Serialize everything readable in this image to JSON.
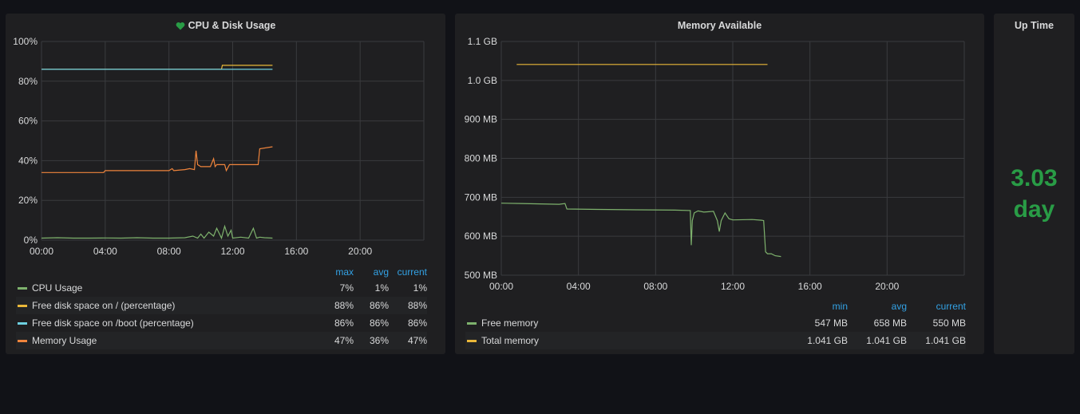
{
  "panels": [
    {
      "title": "CPU & Disk Usage",
      "icon": "heart-icon",
      "chart_data": {
        "type": "line",
        "title": "CPU & Disk Usage",
        "x_unit": "hours",
        "xlim": [
          0,
          24
        ],
        "ylim": [
          0,
          100
        ],
        "y_ticks": [
          "0%",
          "20%",
          "40%",
          "60%",
          "80%",
          "100%"
        ],
        "x_ticks": [
          "00:00",
          "04:00",
          "08:00",
          "12:00",
          "16:00",
          "20:00"
        ],
        "series": [
          {
            "name": "CPU Usage",
            "color": "#7eb26d",
            "x": [
              0,
              1,
              2,
              3,
              4,
              5,
              6,
              7,
              8,
              9,
              9.5,
              9.8,
              10,
              10.2,
              10.5,
              10.8,
              11,
              11.3,
              11.5,
              11.7,
              11.9,
              12,
              12.5,
              13,
              13.3,
              13.5,
              13.7,
              14,
              14.5
            ],
            "y": [
              1,
              1.2,
              1,
              1,
              1.1,
              1,
              1.2,
              1,
              1,
              1.2,
              2,
              1,
              3,
              1,
              4,
              2,
              6,
              1,
              7,
              2,
              5,
              1,
              1.5,
              1,
              6,
              1,
              1.5,
              1.2,
              1
            ]
          },
          {
            "name": "Free disk space on / (percentage)",
            "color": "#eab839",
            "x": [
              0,
              11.3,
              11.35,
              14.5
            ],
            "y": [
              86,
              86,
              88,
              88
            ]
          },
          {
            "name": "Free disk space on /boot (percentage)",
            "color": "#6ed0e0",
            "x": [
              0,
              14.5
            ],
            "y": [
              86,
              86
            ]
          },
          {
            "name": "Memory Usage",
            "color": "#ef843c",
            "x": [
              0,
              3.9,
              4,
              8,
              8.2,
              8.3,
              9,
              9.3,
              9.6,
              9.7,
              9.8,
              10,
              10.6,
              10.8,
              10.9,
              11,
              11.2,
              11.5,
              11.6,
              11.8,
              12,
              13.6,
              13.7,
              14.5
            ],
            "y": [
              34,
              34,
              35,
              35,
              36,
              35,
              35.5,
              36,
              35.5,
              45,
              38,
              37,
              37,
              41,
              37,
              38,
              38,
              38,
              35,
              38,
              38,
              38,
              46,
              47
            ]
          }
        ]
      },
      "legend": {
        "headers": [
          "max",
          "avg",
          "current"
        ],
        "rows": [
          {
            "name": "CPU Usage",
            "color": "#7eb26d",
            "max": "7%",
            "avg": "1%",
            "current": "1%"
          },
          {
            "name": "Free disk space on / (percentage)",
            "color": "#eab839",
            "max": "88%",
            "avg": "86%",
            "current": "88%"
          },
          {
            "name": "Free disk space on /boot (percentage)",
            "color": "#6ed0e0",
            "max": "86%",
            "avg": "86%",
            "current": "86%"
          },
          {
            "name": "Memory Usage",
            "color": "#ef843c",
            "max": "47%",
            "avg": "36%",
            "current": "47%"
          }
        ]
      }
    },
    {
      "title": "Memory Available",
      "chart_data": {
        "type": "line",
        "title": "Memory Available",
        "x_unit": "hours",
        "xlim": [
          0,
          24
        ],
        "ylim": [
          500,
          1100
        ],
        "y_tick_values": [
          500,
          600,
          700,
          800,
          900,
          1000,
          1100
        ],
        "y_ticks": [
          "500 MB",
          "600 MB",
          "700 MB",
          "800 MB",
          "900 MB",
          "1.0 GB",
          "1.1 GB"
        ],
        "x_ticks": [
          "00:00",
          "04:00",
          "08:00",
          "12:00",
          "16:00",
          "20:00"
        ],
        "series": [
          {
            "name": "Free memory",
            "color": "#7eb26d",
            "x": [
              0,
              1,
              2,
              3,
              3.3,
              3.4,
              5,
              7,
              9,
              9.8,
              9.85,
              9.9,
              10,
              10.2,
              10.5,
              11,
              11.2,
              11.3,
              11.4,
              11.6,
              11.8,
              12,
              13,
              13.5,
              13.6,
              13.7,
              13.8,
              14,
              14.2,
              14.5
            ],
            "y": [
              685,
              684,
              683,
              682,
              684,
              670,
              669,
              668,
              667,
              666,
              577,
              640,
              660,
              665,
              662,
              664,
              640,
              612,
              640,
              660,
              645,
              642,
              643,
              641,
              640,
              560,
              555,
              555,
              550,
              548
            ]
          },
          {
            "name": "Total memory",
            "color": "#eab839",
            "x": [
              0.8,
              13.8
            ],
            "y": [
              1041,
              1041
            ]
          }
        ]
      },
      "legend": {
        "headers": [
          "min",
          "avg",
          "current"
        ],
        "rows": [
          {
            "name": "Free memory",
            "color": "#7eb26d",
            "min": "547 MB",
            "avg": "658 MB",
            "current": "550 MB"
          },
          {
            "name": "Total memory",
            "color": "#eab839",
            "min": "1.041 GB",
            "avg": "1.041 GB",
            "current": "1.041 GB"
          }
        ]
      }
    }
  ],
  "uptime": {
    "title": "Up Time",
    "value": "3.03",
    "unit": "day",
    "color": "#299c46"
  }
}
